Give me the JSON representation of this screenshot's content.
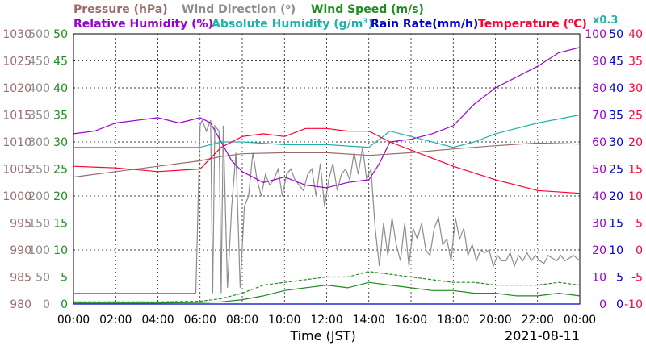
{
  "chart_data": {
    "type": "line",
    "date_label": "2021-08-11",
    "x_axis": {
      "label": "Time (JST)",
      "ticks": [
        "00:00",
        "02:00",
        "04:00",
        "06:00",
        "08:00",
        "10:00",
        "12:00",
        "14:00",
        "16:00",
        "18:00",
        "20:00",
        "22:00",
        "00:00"
      ],
      "range_hours": [
        0,
        24
      ],
      "grid": true
    },
    "legend": {
      "row1": [
        {
          "label": "Pressure (hPa)",
          "color": "#9b6b6b"
        },
        {
          "label": "Wind Direction (",
          "suffix": ")",
          "color": "#8c8c8c"
        },
        {
          "label": "Wind Speed (m/s)",
          "color": "#1e8c1e"
        }
      ],
      "row2": [
        {
          "label": "Relative Humidity (%)",
          "color": "#9900cc"
        },
        {
          "label": "Absolute Humidity (g/m",
          "suffix": ")",
          "color": "#20b2aa"
        },
        {
          "label": "Rain Rate(mm/h)",
          "color": "#0000cc"
        },
        {
          "label": "Temperature (",
          "suffix": "C)",
          "color": "#ff0033"
        }
      ],
      "scale_note": "x0.3"
    },
    "y_axes": {
      "pressure": {
        "ticks": [
          "1030",
          "1025",
          "1020",
          "1015",
          "1010",
          "1005",
          "1000",
          "995",
          "990",
          "985",
          "980"
        ],
        "range": [
          980,
          1030
        ],
        "color": "#9b6b6b"
      },
      "wind_direction": {
        "ticks": [
          "500",
          "450",
          "400",
          "350",
          "300",
          "250",
          "200",
          "150",
          "100",
          "50",
          "0"
        ],
        "range": [
          0,
          500
        ],
        "color": "#8c8c8c"
      },
      "wind_speed": {
        "ticks": [
          "50",
          "45",
          "40",
          "35",
          "30",
          "25",
          "20",
          "15",
          "10",
          "5",
          "0"
        ],
        "range": [
          0,
          50
        ],
        "color": "#1e8c1e"
      },
      "relative_humidity": {
        "ticks": [
          "100",
          "90",
          "80",
          "70",
          "60",
          "50",
          "40",
          "30",
          "20",
          "10",
          "0"
        ],
        "range": [
          0,
          100
        ],
        "color": "#9900cc"
      },
      "rain_rate": {
        "ticks": [
          "50",
          "45",
          "40",
          "35",
          "30",
          "25",
          "20",
          "15",
          "10",
          "5",
          "0"
        ],
        "range": [
          0,
          50
        ],
        "color": "#0000cc"
      },
      "temperature": {
        "ticks": [
          "40",
          "35",
          "30",
          "25",
          "20",
          "15",
          "10",
          "5",
          "0",
          "-5",
          "-10"
        ],
        "range": [
          -10,
          40
        ],
        "color": "#ff0033"
      }
    },
    "series": [
      {
        "name": "Pressure (hPa)",
        "axis": "pressure",
        "color": "#9b6b6b",
        "x": [
          0,
          2,
          4,
          6,
          7,
          8,
          10,
          12,
          14,
          16,
          18,
          20,
          22,
          24
        ],
        "y": [
          1003.5,
          1004.5,
          1005.5,
          1006.5,
          1007.3,
          1007.8,
          1008,
          1008,
          1007.5,
          1008,
          1008.7,
          1009.3,
          1009.8,
          1009.6
        ]
      },
      {
        "name": "Wind Direction",
        "axis": "wind_direction",
        "color": "#8c8c8c",
        "x": [
          0,
          5.8,
          6.0,
          6.1,
          6.3,
          6.5,
          6.6,
          6.7,
          6.9,
          7.0,
          7.1,
          7.3,
          7.5,
          7.7,
          7.9,
          8.1,
          8.3,
          8.5,
          8.7,
          8.9,
          9.1,
          9.3,
          9.5,
          9.7,
          9.9,
          10.1,
          10.3,
          10.5,
          10.7,
          10.9,
          11.1,
          11.3,
          11.5,
          11.7,
          11.9,
          12.1,
          12.3,
          12.5,
          12.7,
          12.9,
          13.1,
          13.3,
          13.5,
          13.7,
          13.9,
          14.1,
          14.3,
          14.5,
          14.7,
          14.9,
          15.1,
          15.3,
          15.5,
          15.7,
          15.9,
          16.1,
          16.3,
          16.5,
          16.7,
          16.9,
          17.1,
          17.3,
          17.5,
          17.7,
          17.9,
          18.1,
          18.3,
          18.5,
          18.7,
          18.9,
          19.1,
          19.3,
          19.5,
          19.7,
          19.9,
          20.1,
          20.3,
          20.5,
          20.7,
          20.9,
          21.1,
          21.3,
          21.5,
          21.7,
          21.9,
          22.1,
          22.3,
          22.5,
          22.7,
          22.9,
          23.1,
          23.3,
          23.5,
          23.7,
          24
        ],
        "y": [
          20,
          20,
          330,
          340,
          320,
          340,
          20,
          330,
          320,
          20,
          330,
          30,
          180,
          280,
          30,
          180,
          200,
          280,
          230,
          200,
          240,
          220,
          230,
          250,
          200,
          240,
          250,
          230,
          220,
          210,
          240,
          250,
          200,
          260,
          180,
          230,
          260,
          210,
          240,
          250,
          230,
          280,
          240,
          290,
          230,
          250,
          140,
          70,
          150,
          90,
          160,
          110,
          80,
          150,
          70,
          140,
          120,
          150,
          100,
          90,
          140,
          160,
          110,
          120,
          80,
          160,
          120,
          140,
          90,
          110,
          80,
          100,
          95,
          100,
          70,
          90,
          80,
          80,
          95,
          70,
          90,
          80,
          95,
          80,
          90,
          80,
          75,
          90,
          85,
          80,
          90,
          80,
          85,
          90,
          80
        ]
      },
      {
        "name": "Wind Speed (m/s)",
        "axis": "wind_speed",
        "color": "#1e8c1e",
        "x": [
          0,
          2,
          4,
          6,
          7,
          8,
          9,
          10,
          11,
          12,
          13,
          14,
          15,
          16,
          17,
          18,
          19,
          20,
          21,
          22,
          23,
          24
        ],
        "y": [
          0.2,
          0.2,
          0.2,
          0.3,
          0.4,
          0.8,
          1.5,
          2.5,
          3.0,
          3.5,
          3.0,
          4.0,
          3.5,
          3.0,
          2.5,
          2.5,
          2.0,
          2.0,
          1.5,
          1.5,
          2.0,
          1.5
        ]
      },
      {
        "name": "Wind Speed (gust)",
        "axis": "wind_speed",
        "color": "#1e8c1e",
        "dashed": true,
        "x": [
          0,
          2,
          4,
          6,
          7,
          8,
          9,
          10,
          11,
          12,
          13,
          14,
          15,
          16,
          17,
          18,
          19,
          20,
          21,
          22,
          23,
          24
        ],
        "y": [
          0.4,
          0.4,
          0.4,
          0.5,
          1.0,
          2.0,
          3.5,
          4.0,
          4.5,
          5.0,
          5.0,
          6.0,
          5.5,
          5.0,
          4.5,
          4.0,
          4.0,
          3.5,
          3.5,
          3.5,
          4.0,
          3.5
        ]
      },
      {
        "name": "Relative Humidity (%)",
        "axis": "relative_humidity",
        "color": "#9900cc",
        "x": [
          0,
          1,
          2,
          3,
          4,
          5,
          6,
          6.5,
          7,
          7.5,
          8,
          9,
          10,
          11,
          12,
          13,
          14,
          14.5,
          15,
          16,
          17,
          18,
          19,
          20,
          21,
          22,
          23,
          24
        ],
        "y": [
          63,
          64,
          67,
          68,
          69,
          67,
          69,
          67,
          60,
          53,
          49,
          45,
          47,
          44,
          43,
          45,
          46,
          52,
          60,
          61,
          63,
          66,
          74,
          80,
          84,
          88,
          93,
          95
        ]
      },
      {
        "name": "Absolute Humidity (g/m3)",
        "axis": "relative_humidity",
        "color": "#20b2aa",
        "x": [
          0,
          2,
          4,
          6,
          7,
          8,
          10,
          12,
          14,
          15,
          16,
          18,
          19,
          20,
          22,
          24
        ],
        "y": [
          58,
          58,
          58,
          58,
          60,
          60,
          59,
          59,
          58,
          64,
          62,
          58,
          60,
          63,
          67,
          70
        ]
      },
      {
        "name": "Rain Rate(mm/h)",
        "axis": "rain_rate",
        "color": "#0000cc",
        "x": [
          0,
          24
        ],
        "y": [
          0,
          0
        ]
      },
      {
        "name": "Temperature (C)",
        "axis": "temperature",
        "color": "#ff0033",
        "x": [
          0,
          2,
          4,
          6,
          7,
          8,
          9,
          10,
          11,
          12,
          13,
          14,
          15,
          16,
          18,
          20,
          22,
          24
        ],
        "y": [
          15.5,
          15.2,
          14.5,
          15,
          19,
          21,
          21.5,
          21,
          22.5,
          22.5,
          22,
          22,
          20,
          18.5,
          15.5,
          13,
          11,
          10.5
        ]
      }
    ]
  }
}
